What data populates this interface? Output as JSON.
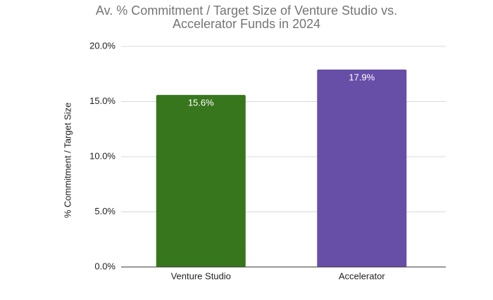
{
  "chart_data": {
    "type": "bar",
    "title": "Av. % Commitment / Target Size of Venture Studio vs. Accelerator Funds in 2024",
    "y_label": "% Commitment / Target Size",
    "categories": [
      "Venture Studio",
      "Accelerator"
    ],
    "values": [
      15.6,
      17.9
    ],
    "value_labels": [
      "15.6%",
      "17.9%"
    ],
    "colors": [
      "#38761d",
      "#674ea7"
    ],
    "ylim": [
      0,
      20
    ],
    "yticks": [
      {
        "value": 0,
        "label": "0.0%"
      },
      {
        "value": 5,
        "label": "5.0%"
      },
      {
        "value": 10,
        "label": "10.0%"
      },
      {
        "value": 15,
        "label": "15.0%"
      },
      {
        "value": 20,
        "label": "20.0%"
      }
    ],
    "grid": true
  }
}
